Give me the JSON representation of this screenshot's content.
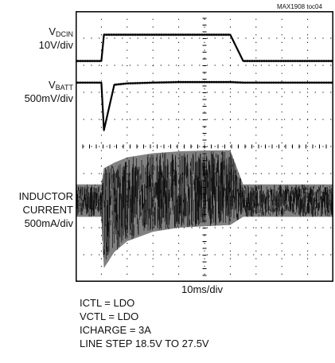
{
  "figure_tag": "MAX1908 toc04",
  "channels": [
    {
      "name": "V",
      "subscript": "DCIN",
      "scale": "10V/div"
    },
    {
      "name": "V",
      "subscript": "BATT",
      "scale": "500mV/div"
    },
    {
      "name": "INDUCTOR CURRENT",
      "line1": "INDUCTOR",
      "line2": "CURRENT",
      "scale": "500mA/div"
    }
  ],
  "timebase": "10ms/div",
  "conditions": [
    "ICTL = LDO",
    "VCTL = LDO",
    "ICHARGE = 3A",
    "LINE STEP 18.5V TO 27.5V"
  ],
  "colors": {
    "background": "#ffffff",
    "trace": "#000000",
    "grid": "#000000"
  },
  "chart_data": {
    "type": "line",
    "title": "",
    "xlabel": "10ms/div",
    "x_divisions": 10,
    "y_divisions": 10,
    "x": [
      0,
      0.8,
      1.0,
      1.1,
      1.5,
      2.0,
      3.0,
      4.0,
      5.0,
      6.0,
      6.5,
      7.0,
      8.0,
      10.0
    ],
    "series": [
      {
        "name": "VDCIN",
        "scale": "10V/div",
        "values": [
          8.16,
          8.16,
          8.16,
          9.13,
          9.13,
          9.13,
          9.13,
          9.13,
          9.13,
          9.13,
          8.16,
          8.16,
          8.16,
          8.16
        ]
      },
      {
        "name": "VBATT",
        "scale": "500mV/div",
        "values": [
          7.36,
          7.36,
          7.36,
          5.6,
          7.28,
          7.33,
          7.36,
          7.38,
          7.38,
          7.38,
          7.36,
          7.36,
          7.36,
          7.36
        ]
      },
      {
        "name": "INDUCTOR CURRENT",
        "scale": "500mA/div",
        "type": "envelope",
        "upper": [
          3.6,
          3.6,
          3.6,
          4.2,
          4.4,
          4.6,
          4.75,
          4.82,
          4.85,
          4.86,
          3.6,
          3.6,
          3.6,
          3.6
        ],
        "lower": [
          2.4,
          2.4,
          2.4,
          0.5,
          1.1,
          1.5,
          1.85,
          2.0,
          2.05,
          2.1,
          2.4,
          2.4,
          2.4,
          2.4
        ]
      }
    ]
  }
}
